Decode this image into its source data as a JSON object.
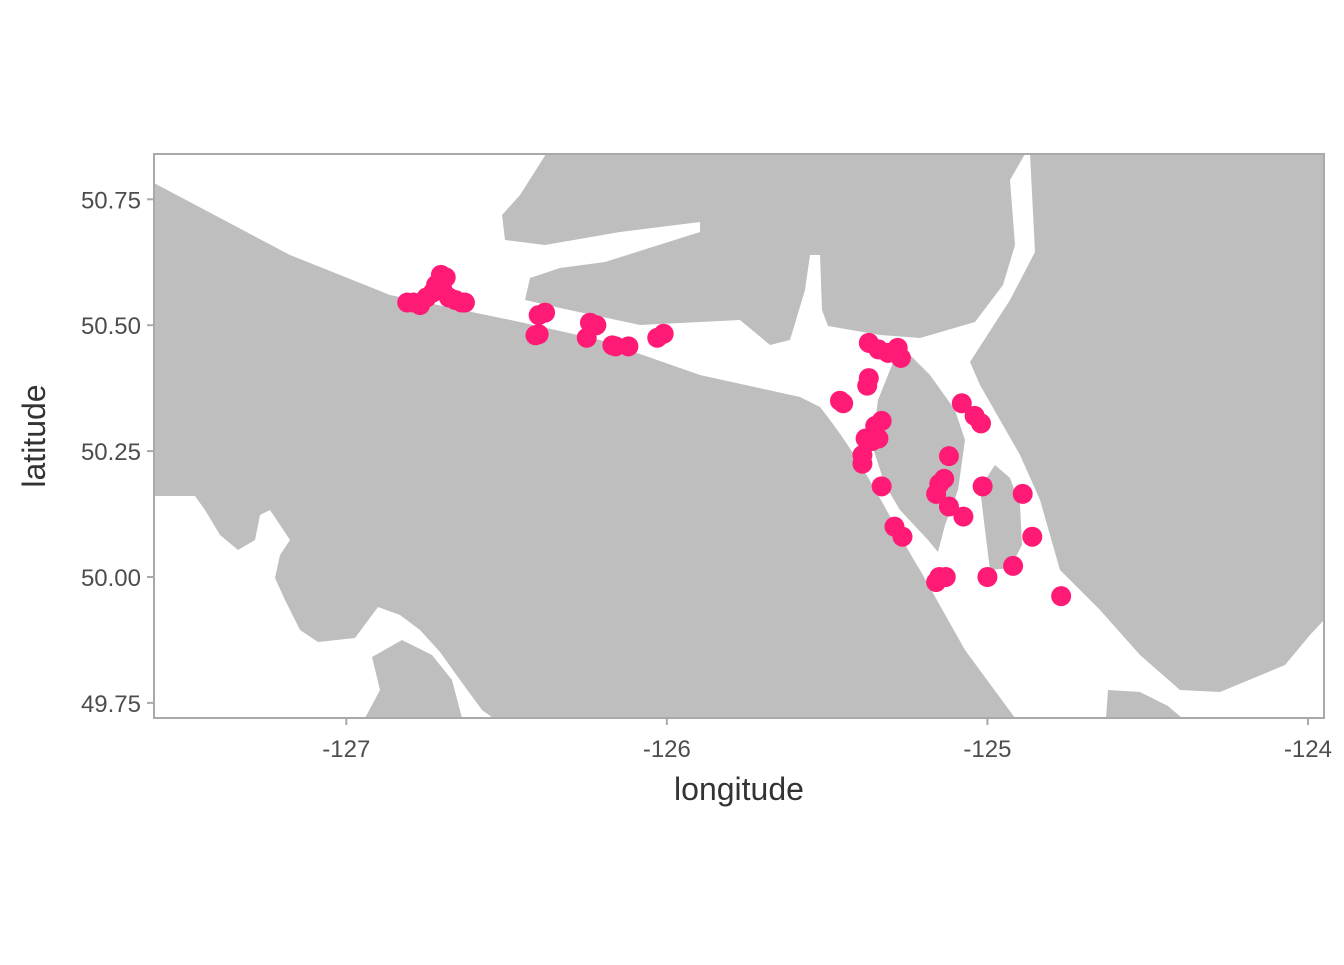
{
  "chart_data": {
    "type": "scatter",
    "xlabel": "longitude",
    "ylabel": "latitude",
    "xlim": [
      -127.6,
      -123.95
    ],
    "ylim": [
      49.72,
      50.84
    ],
    "x_ticks": [
      -127,
      -126,
      -125,
      -124
    ],
    "x_tick_labels": [
      "-127",
      "-126",
      "-125",
      "-124"
    ],
    "y_ticks": [
      49.75,
      50.0,
      50.25,
      50.5,
      50.75
    ],
    "y_tick_labels": [
      "49.75",
      "50.00",
      "50.25",
      "50.50",
      "50.75"
    ],
    "grid": false,
    "background": "land polygons (grey) over water (white)",
    "colors": {
      "point": "#ff1a75",
      "land": "#bebebe",
      "water": "#ffffff",
      "frame": "#a9a9a9",
      "text": "#333333"
    },
    "points": [
      {
        "x": -126.81,
        "y": 50.545
      },
      {
        "x": -126.79,
        "y": 50.545
      },
      {
        "x": -126.77,
        "y": 50.54
      },
      {
        "x": -126.75,
        "y": 50.555
      },
      {
        "x": -126.73,
        "y": 50.565
      },
      {
        "x": -126.72,
        "y": 50.58
      },
      {
        "x": -126.705,
        "y": 50.6
      },
      {
        "x": -126.69,
        "y": 50.595
      },
      {
        "x": -126.7,
        "y": 50.57
      },
      {
        "x": -126.68,
        "y": 50.555
      },
      {
        "x": -126.66,
        "y": 50.55
      },
      {
        "x": -126.64,
        "y": 50.545
      },
      {
        "x": -126.63,
        "y": 50.545
      },
      {
        "x": -126.4,
        "y": 50.52
      },
      {
        "x": -126.38,
        "y": 50.525
      },
      {
        "x": -126.41,
        "y": 50.48
      },
      {
        "x": -126.4,
        "y": 50.482
      },
      {
        "x": -126.24,
        "y": 50.505
      },
      {
        "x": -126.22,
        "y": 50.5
      },
      {
        "x": -126.25,
        "y": 50.475
      },
      {
        "x": -126.17,
        "y": 50.46
      },
      {
        "x": -126.16,
        "y": 50.458
      },
      {
        "x": -126.12,
        "y": 50.458
      },
      {
        "x": -126.03,
        "y": 50.475
      },
      {
        "x": -126.01,
        "y": 50.483
      },
      {
        "x": -125.37,
        "y": 50.465
      },
      {
        "x": -125.34,
        "y": 50.452
      },
      {
        "x": -125.31,
        "y": 50.445
      },
      {
        "x": -125.28,
        "y": 50.455
      },
      {
        "x": -125.27,
        "y": 50.435
      },
      {
        "x": -125.37,
        "y": 50.395
      },
      {
        "x": -125.375,
        "y": 50.38
      },
      {
        "x": -125.46,
        "y": 50.35
      },
      {
        "x": -125.45,
        "y": 50.345
      },
      {
        "x": -125.33,
        "y": 50.31
      },
      {
        "x": -125.35,
        "y": 50.3
      },
      {
        "x": -125.38,
        "y": 50.275
      },
      {
        "x": -125.34,
        "y": 50.275
      },
      {
        "x": -125.36,
        "y": 50.27
      },
      {
        "x": -125.39,
        "y": 50.242
      },
      {
        "x": -125.39,
        "y": 50.225
      },
      {
        "x": -125.33,
        "y": 50.18
      },
      {
        "x": -125.08,
        "y": 50.345
      },
      {
        "x": -125.04,
        "y": 50.32
      },
      {
        "x": -125.02,
        "y": 50.305
      },
      {
        "x": -125.12,
        "y": 50.24
      },
      {
        "x": -125.135,
        "y": 50.195
      },
      {
        "x": -125.15,
        "y": 50.185
      },
      {
        "x": -125.16,
        "y": 50.165
      },
      {
        "x": -125.12,
        "y": 50.14
      },
      {
        "x": -125.075,
        "y": 50.12
      },
      {
        "x": -125.015,
        "y": 50.18
      },
      {
        "x": -125.29,
        "y": 50.1
      },
      {
        "x": -125.265,
        "y": 50.08
      },
      {
        "x": -125.16,
        "y": 49.99
      },
      {
        "x": -125.15,
        "y": 50.0
      },
      {
        "x": -125.13,
        "y": 50.0
      },
      {
        "x": -125.0,
        "y": 50.0
      },
      {
        "x": -124.92,
        "y": 50.022
      },
      {
        "x": -124.89,
        "y": 50.165
      },
      {
        "x": -124.86,
        "y": 50.08
      },
      {
        "x": -124.77,
        "y": 49.962
      }
    ]
  }
}
